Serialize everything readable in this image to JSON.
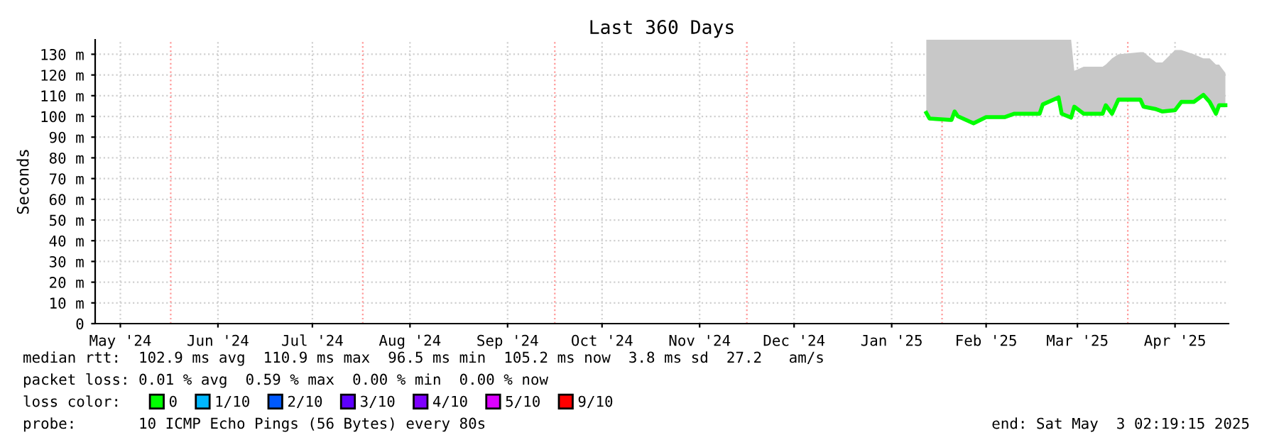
{
  "chart_data": {
    "type": "line",
    "title": "Last 360 Days",
    "ylabel": "Seconds",
    "x": [
      "2025-01-27",
      "2025-01-28",
      "2025-02-04",
      "2025-02-05",
      "2025-02-06",
      "2025-02-11",
      "2025-02-15",
      "2025-02-21",
      "2025-02-24",
      "2025-03-04",
      "2025-03-05",
      "2025-03-10",
      "2025-03-11",
      "2025-03-14",
      "2025-03-15",
      "2025-03-18",
      "2025-03-24",
      "2025-03-25",
      "2025-03-27",
      "2025-03-29",
      "2025-04-05",
      "2025-04-06",
      "2025-04-10",
      "2025-04-12",
      "2025-04-16",
      "2025-04-18",
      "2025-04-22",
      "2025-04-25",
      "2025-04-27",
      "2025-04-29",
      "2025-04-30",
      "2025-05-02"
    ],
    "series": [
      {
        "name": "0",
        "color": "#00ff00",
        "values": [
          101.7,
          99.0,
          98.3,
          102.4,
          100.1,
          96.7,
          99.7,
          99.7,
          101.3,
          101.3,
          105.8,
          109.2,
          101.3,
          99.4,
          104.7,
          101.3,
          101.3,
          105.4,
          101.3,
          108.1,
          108.1,
          104.7,
          103.5,
          102.4,
          103.0,
          107.0,
          107.0,
          110.4,
          107.0,
          101.3,
          105.4,
          105.4
        ],
        "lower": [
          100.7,
          98.0,
          97.3,
          101.4,
          99.1,
          95.7,
          98.7,
          98.7,
          100.3,
          100.3,
          104.8,
          108.2,
          100.3,
          98.4,
          103.7,
          100.3,
          100.3,
          104.4,
          100.3,
          107.1,
          107.1,
          103.7,
          102.5,
          101.4,
          102.0,
          106.0,
          106.0,
          109.4,
          106.0,
          100.3,
          104.4,
          104.4
        ],
        "upper": [
          137,
          137,
          137,
          137,
          137,
          137,
          137,
          137,
          137,
          137,
          137,
          137,
          137,
          137,
          122,
          124,
          124,
          125,
          128,
          130,
          131,
          131,
          126,
          126,
          132,
          132,
          130,
          128,
          128,
          125,
          125,
          121
        ]
      },
      {
        "name": "1/10",
        "color": "#00b8ff",
        "values": [
          null,
          null,
          null,
          null,
          null,
          null,
          null,
          null,
          null,
          null,
          null,
          null,
          null,
          null,
          null,
          null,
          null,
          null,
          null,
          null,
          null,
          null,
          null,
          null,
          null,
          null,
          null,
          null,
          null,
          null,
          null,
          null
        ]
      },
      {
        "name": "2/10",
        "color": "#0059ff",
        "values": [
          null,
          null,
          null,
          null,
          null,
          null,
          null,
          null,
          null,
          null,
          null,
          null,
          null,
          null,
          null,
          null,
          null,
          null,
          null,
          null,
          null,
          null,
          null,
          null,
          null,
          null,
          null,
          null,
          null,
          null,
          null,
          null
        ]
      },
      {
        "name": "3/10",
        "color": "#5e00ff",
        "values": [
          null,
          null,
          null,
          null,
          null,
          null,
          null,
          null,
          null,
          null,
          null,
          null,
          null,
          null,
          null,
          null,
          null,
          null,
          null,
          null,
          null,
          null,
          null,
          null,
          null,
          null,
          null,
          null,
          null,
          null,
          null,
          null
        ]
      },
      {
        "name": "4/10",
        "color": "#7e00ff",
        "values": [
          null,
          null,
          null,
          null,
          null,
          null,
          null,
          null,
          null,
          null,
          null,
          null,
          null,
          null,
          null,
          null,
          null,
          null,
          null,
          null,
          null,
          null,
          null,
          null,
          null,
          null,
          null,
          null,
          null,
          null,
          null,
          null
        ]
      },
      {
        "name": "5/10",
        "color": "#dd00ff",
        "values": [
          null,
          null,
          null,
          null,
          null,
          null,
          null,
          null,
          null,
          null,
          null,
          null,
          null,
          null,
          null,
          null,
          null,
          null,
          null,
          null,
          null,
          null,
          null,
          null,
          null,
          null,
          null,
          null,
          null,
          null,
          null,
          null
        ]
      },
      {
        "name": "9/10",
        "color": "#ff0000",
        "values": [
          null,
          null,
          null,
          null,
          null,
          null,
          null,
          null,
          null,
          null,
          null,
          null,
          null,
          null,
          null,
          null,
          null,
          null,
          null,
          null,
          null,
          null,
          null,
          null,
          null,
          null,
          null,
          null,
          null,
          null,
          null,
          null
        ]
      }
    ],
    "xlim": [
      "2024-05-08",
      "2025-05-03"
    ],
    "xticks": [
      {
        "value": "2024-05-16",
        "label": "May '24"
      },
      {
        "value": "2024-06-16",
        "label": "Jun '24"
      },
      {
        "value": "2024-07-16",
        "label": "Jul '24"
      },
      {
        "value": "2024-08-16",
        "label": "Aug '24"
      },
      {
        "value": "2024-09-16",
        "label": "Sep '24"
      },
      {
        "value": "2024-10-16",
        "label": "Oct '24"
      },
      {
        "value": "2024-11-16",
        "label": "Nov '24"
      },
      {
        "value": "2024-12-16",
        "label": "Dec '24"
      },
      {
        "value": "2025-01-16",
        "label": "Jan '25"
      },
      {
        "value": "2025-02-15",
        "label": "Feb '25"
      },
      {
        "value": "2025-03-16",
        "label": "Mar '25"
      },
      {
        "value": "2025-04-16",
        "label": "Apr '25"
      }
    ],
    "ylim": [
      0,
      137
    ],
    "yticks": [
      0,
      {
        "value": 10,
        "label": "10 m"
      },
      {
        "value": 20,
        "label": "20 m"
      },
      {
        "value": 30,
        "label": "30 m"
      },
      {
        "value": 40,
        "label": "40 m"
      },
      {
        "value": 50,
        "label": "50 m"
      },
      {
        "value": 60,
        "label": "60 m"
      },
      {
        "value": 70,
        "label": "70 m"
      },
      {
        "value": 80,
        "label": "80 m"
      },
      {
        "value": 90,
        "label": "90 m"
      },
      {
        "value": 100,
        "label": "100 m"
      },
      {
        "value": 110,
        "label": "110 m"
      },
      {
        "value": 120,
        "label": "120 m"
      },
      {
        "value": 130,
        "label": "130 m"
      }
    ],
    "ref_lines": [
      {
        "axis": "x",
        "value": "2024-06-01",
        "color": "#ff9999",
        "line_style": "dotted"
      },
      {
        "axis": "x",
        "value": "2024-08-01",
        "color": "#ff9999",
        "line_style": "dotted"
      },
      {
        "axis": "x",
        "value": "2024-10-01",
        "color": "#ff9999",
        "line_style": "dotted"
      },
      {
        "axis": "x",
        "value": "2024-12-01",
        "color": "#ff9999",
        "line_style": "dotted"
      },
      {
        "axis": "x",
        "value": "2025-02-01",
        "color": "#ff9999",
        "line_style": "dotted"
      },
      {
        "axis": "x",
        "value": "2025-04-01",
        "color": "#ff9999",
        "line_style": "dotted"
      }
    ],
    "grid": true,
    "legend": "bottom",
    "legend_title": "loss color:",
    "annotations": [
      "median rtt:  102.9 ms avg  110.9 ms max  96.5 ms min  105.2 ms now  3.8 ms sd  27.2   am/s",
      "packet loss: 0.01 % avg  0.59 % max  0.00 % min  0.00 % now",
      "probe:       10 ICMP Echo Pings (56 Bytes) every 80s",
      "end: Sat May  3 02:19:15 2025"
    ]
  }
}
